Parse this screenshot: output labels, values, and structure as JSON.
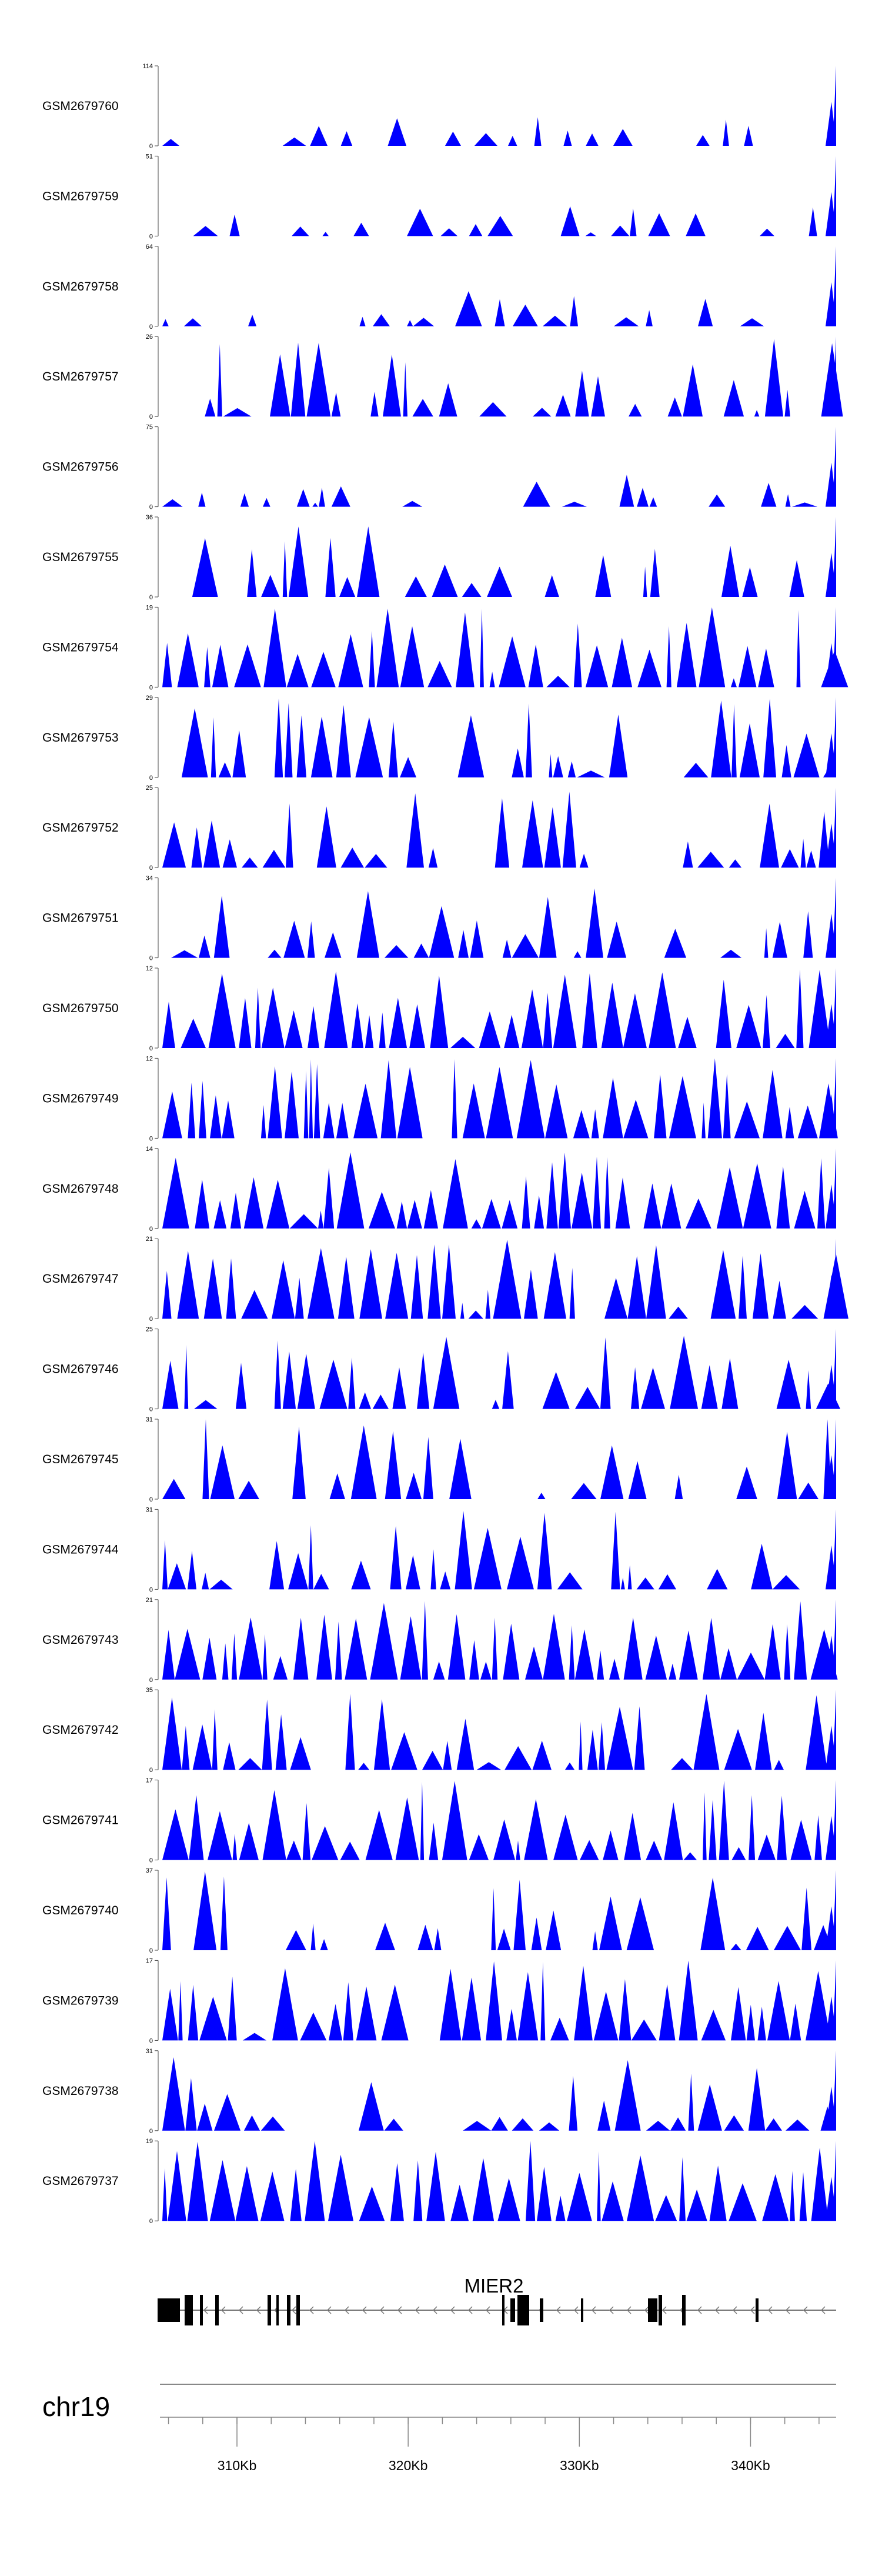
{
  "chart_data": {
    "type": "area",
    "title": "",
    "chromosome": "chr19",
    "gene": {
      "name": "MIER2",
      "strand": "-"
    },
    "x_axis": {
      "unit": "Kb",
      "range_kb": [
        305.5,
        345.0
      ],
      "tick_labels": [
        "310Kb",
        "320Kb",
        "330Kb",
        "340Kb"
      ],
      "labeled_ticks_kb": [
        310,
        320,
        330,
        340
      ],
      "minor_ticks_kb": [
        306,
        308,
        310,
        312,
        314,
        316,
        318,
        320,
        322,
        324,
        326,
        328,
        330,
        332,
        334,
        336,
        338,
        340,
        342,
        344
      ]
    },
    "tracks": [
      {
        "name": "GSM2679760",
        "ymax": 114,
        "ymin": 0,
        "color": "#0000ff",
        "profile": "sparse",
        "seed": 11
      },
      {
        "name": "GSM2679759",
        "ymax": 51,
        "ymin": 0,
        "color": "#0000ff",
        "profile": "sparse",
        "seed": 12
      },
      {
        "name": "GSM2679758",
        "ymax": 64,
        "ymin": 0,
        "color": "#0000ff",
        "profile": "sparse",
        "seed": 13
      },
      {
        "name": "GSM2679757",
        "ymax": 26,
        "ymin": 0,
        "color": "#0000ff",
        "profile": "medium",
        "seed": 14
      },
      {
        "name": "GSM2679756",
        "ymax": 75,
        "ymin": 0,
        "color": "#0000ff",
        "profile": "sparse",
        "seed": 15
      },
      {
        "name": "GSM2679755",
        "ymax": 36,
        "ymin": 0,
        "color": "#0000ff",
        "profile": "medium",
        "seed": 16
      },
      {
        "name": "GSM2679754",
        "ymax": 19,
        "ymin": 0,
        "color": "#0000ff",
        "profile": "dense",
        "seed": 17
      },
      {
        "name": "GSM2679753",
        "ymax": 29,
        "ymin": 0,
        "color": "#0000ff",
        "profile": "medium",
        "seed": 18
      },
      {
        "name": "GSM2679752",
        "ymax": 25,
        "ymin": 0,
        "color": "#0000ff",
        "profile": "medium",
        "seed": 19
      },
      {
        "name": "GSM2679751",
        "ymax": 34,
        "ymin": 0,
        "color": "#0000ff",
        "profile": "medium",
        "seed": 20
      },
      {
        "name": "GSM2679750",
        "ymax": 12,
        "ymin": 0,
        "color": "#0000ff",
        "profile": "dense",
        "seed": 21
      },
      {
        "name": "GSM2679749",
        "ymax": 12,
        "ymin": 0,
        "color": "#0000ff",
        "profile": "dense",
        "seed": 22
      },
      {
        "name": "GSM2679748",
        "ymax": 14,
        "ymin": 0,
        "color": "#0000ff",
        "profile": "dense",
        "seed": 23
      },
      {
        "name": "GSM2679747",
        "ymax": 21,
        "ymin": 0,
        "color": "#0000ff",
        "profile": "dense",
        "seed": 24
      },
      {
        "name": "GSM2679746",
        "ymax": 25,
        "ymin": 0,
        "color": "#0000ff",
        "profile": "medium",
        "seed": 25
      },
      {
        "name": "GSM2679745",
        "ymax": 31,
        "ymin": 0,
        "color": "#0000ff",
        "profile": "medium",
        "seed": 26
      },
      {
        "name": "GSM2679744",
        "ymax": 31,
        "ymin": 0,
        "color": "#0000ff",
        "profile": "medium",
        "seed": 27
      },
      {
        "name": "GSM2679743",
        "ymax": 21,
        "ymin": 0,
        "color": "#0000ff",
        "profile": "dense",
        "seed": 28
      },
      {
        "name": "GSM2679742",
        "ymax": 35,
        "ymin": 0,
        "color": "#0000ff",
        "profile": "medium",
        "seed": 29
      },
      {
        "name": "GSM2679741",
        "ymax": 17,
        "ymin": 0,
        "color": "#0000ff",
        "profile": "dense",
        "seed": 30
      },
      {
        "name": "GSM2679740",
        "ymax": 37,
        "ymin": 0,
        "color": "#0000ff",
        "profile": "medium",
        "seed": 31
      },
      {
        "name": "GSM2679739",
        "ymax": 17,
        "ymin": 0,
        "color": "#0000ff",
        "profile": "dense",
        "seed": 32
      },
      {
        "name": "GSM2679738",
        "ymax": 31,
        "ymin": 0,
        "color": "#0000ff",
        "profile": "medium",
        "seed": 33
      },
      {
        "name": "GSM2679737",
        "ymax": 19,
        "ymin": 0,
        "color": "#0000ff",
        "profile": "dense",
        "seed": 34
      }
    ]
  }
}
